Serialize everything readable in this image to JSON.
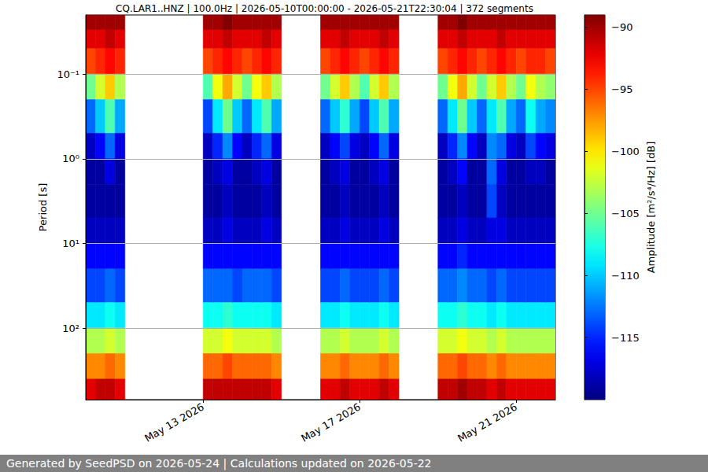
{
  "chart_data": {
    "type": "heatmap",
    "title": "CQ.LAR1..HNZ | 100.0Hz | 2026-05-10T00:00:00 - 2026-05-21T22:30:04 | 372 segments",
    "footer": "Generated by SeedPSD on 2026-05-24 | Calculations updated on 2026-05-22",
    "ylabel": "Period [s]",
    "colorbar_label": "Amplitude [m²/s⁴/Hz] [dB]",
    "log": "y",
    "grid": "y",
    "xlim": [
      "2026-05-10T00:00:00",
      "2026-05-22T00:00:00"
    ],
    "xticks": [
      {
        "value": "2026-05-13T00:00:00",
        "label": "May 13 2026"
      },
      {
        "value": "2026-05-17T00:00:00",
        "label": "May 17 2026"
      },
      {
        "value": "2026-05-21T00:00:00",
        "label": "May 21 2026"
      }
    ],
    "ylim": [
      0.02,
      700
    ],
    "yticks": [
      {
        "value": 0.1,
        "label": "10⁻¹"
      },
      {
        "value": 1,
        "label": "10⁰"
      },
      {
        "value": 10,
        "label": "10¹"
      },
      {
        "value": 100,
        "label": "10²"
      }
    ],
    "clim": [
      -120,
      -89
    ],
    "cticks": [
      {
        "value": -90,
        "label": "−90"
      },
      {
        "value": -95,
        "label": "−95"
      },
      {
        "value": -100,
        "label": "−100"
      },
      {
        "value": -105,
        "label": "−105"
      },
      {
        "value": -110,
        "label": "−110"
      },
      {
        "value": -115,
        "label": "−115"
      }
    ],
    "period_edges": [
      0.02,
      0.03,
      0.05,
      0.1,
      0.2,
      0.5,
      1,
      2,
      5,
      10,
      20,
      50,
      100,
      200,
      400,
      700
    ],
    "x_start": [
      "2026-05-10T00:00:00",
      "2026-05-10T06:00:00",
      "2026-05-10T12:00:00",
      "2026-05-10T18:00:00",
      "2026-05-13T00:00:00",
      "2026-05-13T06:00:00",
      "2026-05-13T12:00:00",
      "2026-05-13T18:00:00",
      "2026-05-14T00:00:00",
      "2026-05-14T06:00:00",
      "2026-05-14T12:00:00",
      "2026-05-14T18:00:00",
      "2026-05-16T00:00:00",
      "2026-05-16T06:00:00",
      "2026-05-16T12:00:00",
      "2026-05-16T18:00:00",
      "2026-05-17T00:00:00",
      "2026-05-17T06:00:00",
      "2026-05-17T12:00:00",
      "2026-05-17T18:00:00",
      "2026-05-19T00:00:00",
      "2026-05-19T06:00:00",
      "2026-05-19T12:00:00",
      "2026-05-19T18:00:00",
      "2026-05-20T00:00:00",
      "2026-05-20T06:00:00",
      "2026-05-20T12:00:00",
      "2026-05-20T18:00:00",
      "2026-05-21T00:00:00",
      "2026-05-21T06:00:00",
      "2026-05-21T12:00:00",
      "2026-05-21T18:00:00"
    ],
    "x_end": [
      "2026-05-10T06:00:00",
      "2026-05-10T12:00:00",
      "2026-05-10T18:00:00",
      "2026-05-11T00:00:00",
      "2026-05-13T06:00:00",
      "2026-05-13T12:00:00",
      "2026-05-13T18:00:00",
      "2026-05-14T00:00:00",
      "2026-05-14T06:00:00",
      "2026-05-14T12:00:00",
      "2026-05-14T18:00:00",
      "2026-05-15T00:00:00",
      "2026-05-16T06:00:00",
      "2026-05-16T12:00:00",
      "2026-05-16T18:00:00",
      "2026-05-17T00:00:00",
      "2026-05-17T06:00:00",
      "2026-05-17T12:00:00",
      "2026-05-17T18:00:00",
      "2026-05-18T00:00:00",
      "2026-05-19T06:00:00",
      "2026-05-19T12:00:00",
      "2026-05-19T18:00:00",
      "2026-05-20T00:00:00",
      "2026-05-20T06:00:00",
      "2026-05-20T12:00:00",
      "2026-05-20T18:00:00",
      "2026-05-21T00:00:00",
      "2026-05-21T06:00:00",
      "2026-05-21T12:00:00",
      "2026-05-21T18:00:00",
      "2026-05-22T00:00:00"
    ],
    "values": [
      [
        -90,
        -92,
        -95,
        -105,
        -113,
        -118,
        -119,
        -119,
        -118,
        -116,
        -114,
        -109,
        -103,
        -97,
        -92
      ],
      [
        -90,
        -92,
        -94,
        -102,
        -110,
        -116,
        -119,
        -119,
        -118,
        -116,
        -114,
        -109,
        -103,
        -97,
        -91
      ],
      [
        -90,
        -91,
        -93,
        -99,
        -106,
        -113,
        -117,
        -119,
        -118,
        -116,
        -113,
        -108,
        -102,
        -96,
        -91
      ],
      [
        -90,
        -92,
        -94,
        -103,
        -111,
        -117,
        -119,
        -119,
        -118,
        -116,
        -114,
        -109,
        -103,
        -97,
        -92
      ],
      [
        -90,
        -92,
        -95,
        -106,
        -114,
        -118,
        -119,
        -119,
        -118,
        -116,
        -113,
        -108,
        -102,
        -96,
        -91
      ],
      [
        -90,
        -92,
        -94,
        -101,
        -109,
        -115,
        -118,
        -119,
        -118,
        -116,
        -113,
        -108,
        -102,
        -96,
        -91
      ],
      [
        -89,
        -91,
        -93,
        -98,
        -105,
        -112,
        -117,
        -118,
        -117,
        -116,
        -113,
        -107,
        -101,
        -95,
        -91
      ],
      [
        -90,
        -92,
        -94,
        -102,
        -110,
        -116,
        -119,
        -119,
        -118,
        -116,
        -114,
        -108,
        -102,
        -96,
        -91
      ],
      [
        -90,
        -92,
        -95,
        -105,
        -113,
        -118,
        -119,
        -119,
        -118,
        -116,
        -113,
        -108,
        -102,
        -96,
        -91
      ],
      [
        -90,
        -92,
        -94,
        -101,
        -109,
        -115,
        -118,
        -119,
        -118,
        -116,
        -113,
        -108,
        -102,
        -96,
        -91
      ],
      [
        -90,
        -91,
        -93,
        -99,
        -106,
        -113,
        -117,
        -118,
        -117,
        -116,
        -113,
        -108,
        -102,
        -96,
        -91
      ],
      [
        -90,
        -92,
        -94,
        -103,
        -111,
        -117,
        -119,
        -119,
        -118,
        -116,
        -114,
        -109,
        -103,
        -97,
        -92
      ],
      [
        -90,
        -92,
        -95,
        -105,
        -113,
        -118,
        -119,
        -119,
        -118,
        -116,
        -114,
        -109,
        -103,
        -97,
        -92
      ],
      [
        -90,
        -92,
        -94,
        -102,
        -110,
        -116,
        -118,
        -119,
        -118,
        -116,
        -114,
        -109,
        -103,
        -97,
        -92
      ],
      [
        -90,
        -91,
        -93,
        -99,
        -107,
        -114,
        -117,
        -118,
        -117,
        -116,
        -113,
        -108,
        -102,
        -96,
        -91
      ],
      [
        -90,
        -92,
        -94,
        -103,
        -111,
        -117,
        -119,
        -119,
        -118,
        -116,
        -114,
        -109,
        -103,
        -97,
        -92
      ],
      [
        -90,
        -92,
        -95,
        -106,
        -114,
        -118,
        -119,
        -119,
        -118,
        -116,
        -114,
        -109,
        -103,
        -97,
        -92
      ],
      [
        -90,
        -92,
        -94,
        -102,
        -110,
        -116,
        -118,
        -119,
        -118,
        -116,
        -114,
        -109,
        -103,
        -97,
        -92
      ],
      [
        -90,
        -91,
        -93,
        -99,
        -106,
        -113,
        -117,
        -118,
        -117,
        -116,
        -113,
        -108,
        -102,
        -96,
        -91
      ],
      [
        -90,
        -92,
        -94,
        -103,
        -111,
        -117,
        -119,
        -119,
        -118,
        -116,
        -114,
        -109,
        -103,
        -97,
        -92
      ],
      [
        -90,
        -92,
        -95,
        -105,
        -113,
        -118,
        -119,
        -119,
        -118,
        -116,
        -113,
        -108,
        -102,
        -96,
        -91
      ],
      [
        -90,
        -92,
        -94,
        -101,
        -109,
        -115,
        -118,
        -119,
        -118,
        -116,
        -113,
        -108,
        -102,
        -96,
        -91
      ],
      [
        -89,
        -91,
        -93,
        -98,
        -105,
        -112,
        -116,
        -118,
        -117,
        -115,
        -112,
        -107,
        -101,
        -95,
        -90
      ],
      [
        -90,
        -92,
        -94,
        -102,
        -110,
        -116,
        -119,
        -119,
        -118,
        -116,
        -113,
        -108,
        -102,
        -96,
        -91
      ],
      [
        -90,
        -92,
        -95,
        -105,
        -113,
        -118,
        -119,
        -119,
        -118,
        -116,
        -113,
        -108,
        -102,
        -96,
        -91
      ],
      [
        -90,
        -92,
        -94,
        -102,
        -109,
        -112,
        -113,
        -114,
        -117,
        -116,
        -114,
        -109,
        -103,
        -97,
        -92
      ],
      [
        -90,
        -91,
        -93,
        -99,
        -106,
        -113,
        -117,
        -118,
        -117,
        -116,
        -113,
        -108,
        -102,
        -96,
        -91
      ],
      [
        -90,
        -92,
        -94,
        -103,
        -111,
        -117,
        -119,
        -119,
        -118,
        -116,
        -114,
        -109,
        -103,
        -97,
        -92
      ],
      [
        -90,
        -92,
        -95,
        -105,
        -113,
        -118,
        -119,
        -119,
        -118,
        -116,
        -114,
        -109,
        -103,
        -97,
        -92
      ],
      [
        -90,
        -92,
        -94,
        -101,
        -108,
        -114,
        -118,
        -119,
        -118,
        -116,
        -114,
        -109,
        -103,
        -97,
        -92
      ],
      [
        -90,
        -92,
        -94,
        -103,
        -111,
        -116,
        -118,
        -119,
        -118,
        -116,
        -114,
        -109,
        -103,
        -97,
        -92
      ],
      [
        -90,
        -92,
        -95,
        -104,
        -112,
        -117,
        -119,
        -119,
        -118,
        -116,
        -114,
        -109,
        -103,
        -97,
        -92
      ]
    ]
  }
}
